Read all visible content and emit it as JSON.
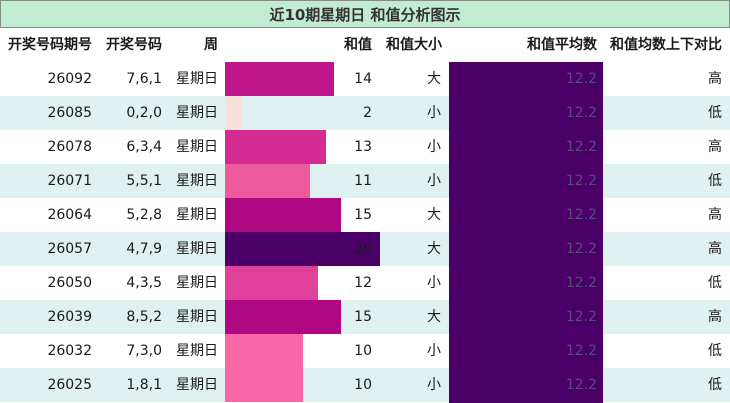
{
  "chart_data": {
    "type": "table",
    "title": "近10期星期日 和值分析图示",
    "columns": [
      "开奖号码期号",
      "开奖号码",
      "周",
      "和值",
      "和值大小",
      "和值平均数",
      "和值均数上下对比"
    ],
    "rows": [
      {
        "issue": "26092",
        "numbers": "7,6,1",
        "weekday": "星期日",
        "sum": 14,
        "size": "大",
        "avg": "12.2",
        "compare": "高",
        "bar_color": "#c0168c"
      },
      {
        "issue": "26085",
        "numbers": "0,2,0",
        "weekday": "星期日",
        "sum": 2,
        "size": "小",
        "avg": "12.2",
        "compare": "低",
        "bar_color": "#f8e0dc"
      },
      {
        "issue": "26078",
        "numbers": "6,3,4",
        "weekday": "星期日",
        "sum": 13,
        "size": "小",
        "avg": "12.2",
        "compare": "高",
        "bar_color": "#d42c94"
      },
      {
        "issue": "26071",
        "numbers": "5,5,1",
        "weekday": "星期日",
        "sum": 11,
        "size": "小",
        "avg": "12.2",
        "compare": "低",
        "bar_color": "#ee5a9e"
      },
      {
        "issue": "26064",
        "numbers": "5,2,8",
        "weekday": "星期日",
        "sum": 15,
        "size": "大",
        "avg": "12.2",
        "compare": "高",
        "bar_color": "#b00882"
      },
      {
        "issue": "26057",
        "numbers": "4,7,9",
        "weekday": "星期日",
        "sum": 20,
        "size": "大",
        "avg": "12.2",
        "compare": "高",
        "bar_color": "#4a0068"
      },
      {
        "issue": "26050",
        "numbers": "4,3,5",
        "weekday": "星期日",
        "sum": 12,
        "size": "小",
        "avg": "12.2",
        "compare": "低",
        "bar_color": "#e0409a"
      },
      {
        "issue": "26039",
        "numbers": "8,5,2",
        "weekday": "星期日",
        "sum": 15,
        "size": "大",
        "avg": "12.2",
        "compare": "高",
        "bar_color": "#b00882"
      },
      {
        "issue": "26032",
        "numbers": "7,3,0",
        "weekday": "星期日",
        "sum": 10,
        "size": "小",
        "avg": "12.2",
        "compare": "低",
        "bar_color": "#f868a6"
      },
      {
        "issue": "26025",
        "numbers": "1,8,1",
        "weekday": "星期日",
        "sum": 10,
        "size": "小",
        "avg": "12.2",
        "compare": "低",
        "bar_color": "#f868a6"
      }
    ],
    "sum_range": [
      0,
      20
    ]
  }
}
